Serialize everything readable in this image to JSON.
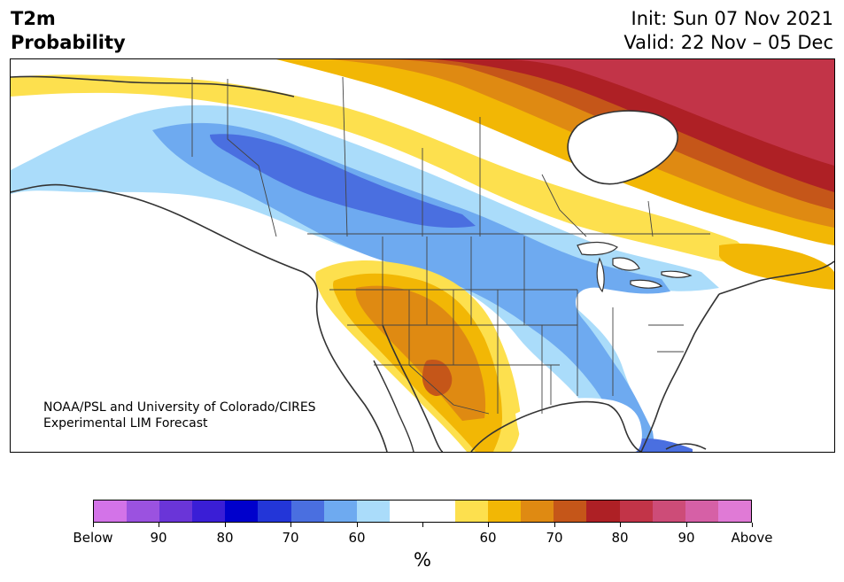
{
  "title": {
    "line1": "T2m",
    "line2": "Probability"
  },
  "info": {
    "init": "Init: Sun 07 Nov 2021",
    "valid": "Valid: 22 Nov – 05 Dec"
  },
  "credit": {
    "line1": "NOAA/PSL and University of Colorado/CIRES",
    "line2": "Experimental LIM Forecast"
  },
  "colorbar": {
    "colors": [
      "#d373e8",
      "#9b52e0",
      "#6a35d8",
      "#3a1ed6",
      "#0000cc",
      "#2336d8",
      "#4a6fe0",
      "#6eaaf0",
      "#aadcfa",
      "#ffffff",
      "#ffffff",
      "#fde04e",
      "#f2b705",
      "#df8a12",
      "#c55619",
      "#ae2025",
      "#c23448",
      "#cd4c78",
      "#d660a6",
      "#e07ad6"
    ],
    "unit": "%",
    "tick_labels": [
      "Below",
      "90",
      "80",
      "70",
      "60",
      "",
      "60",
      "70",
      "80",
      "90",
      "Above"
    ]
  }
}
